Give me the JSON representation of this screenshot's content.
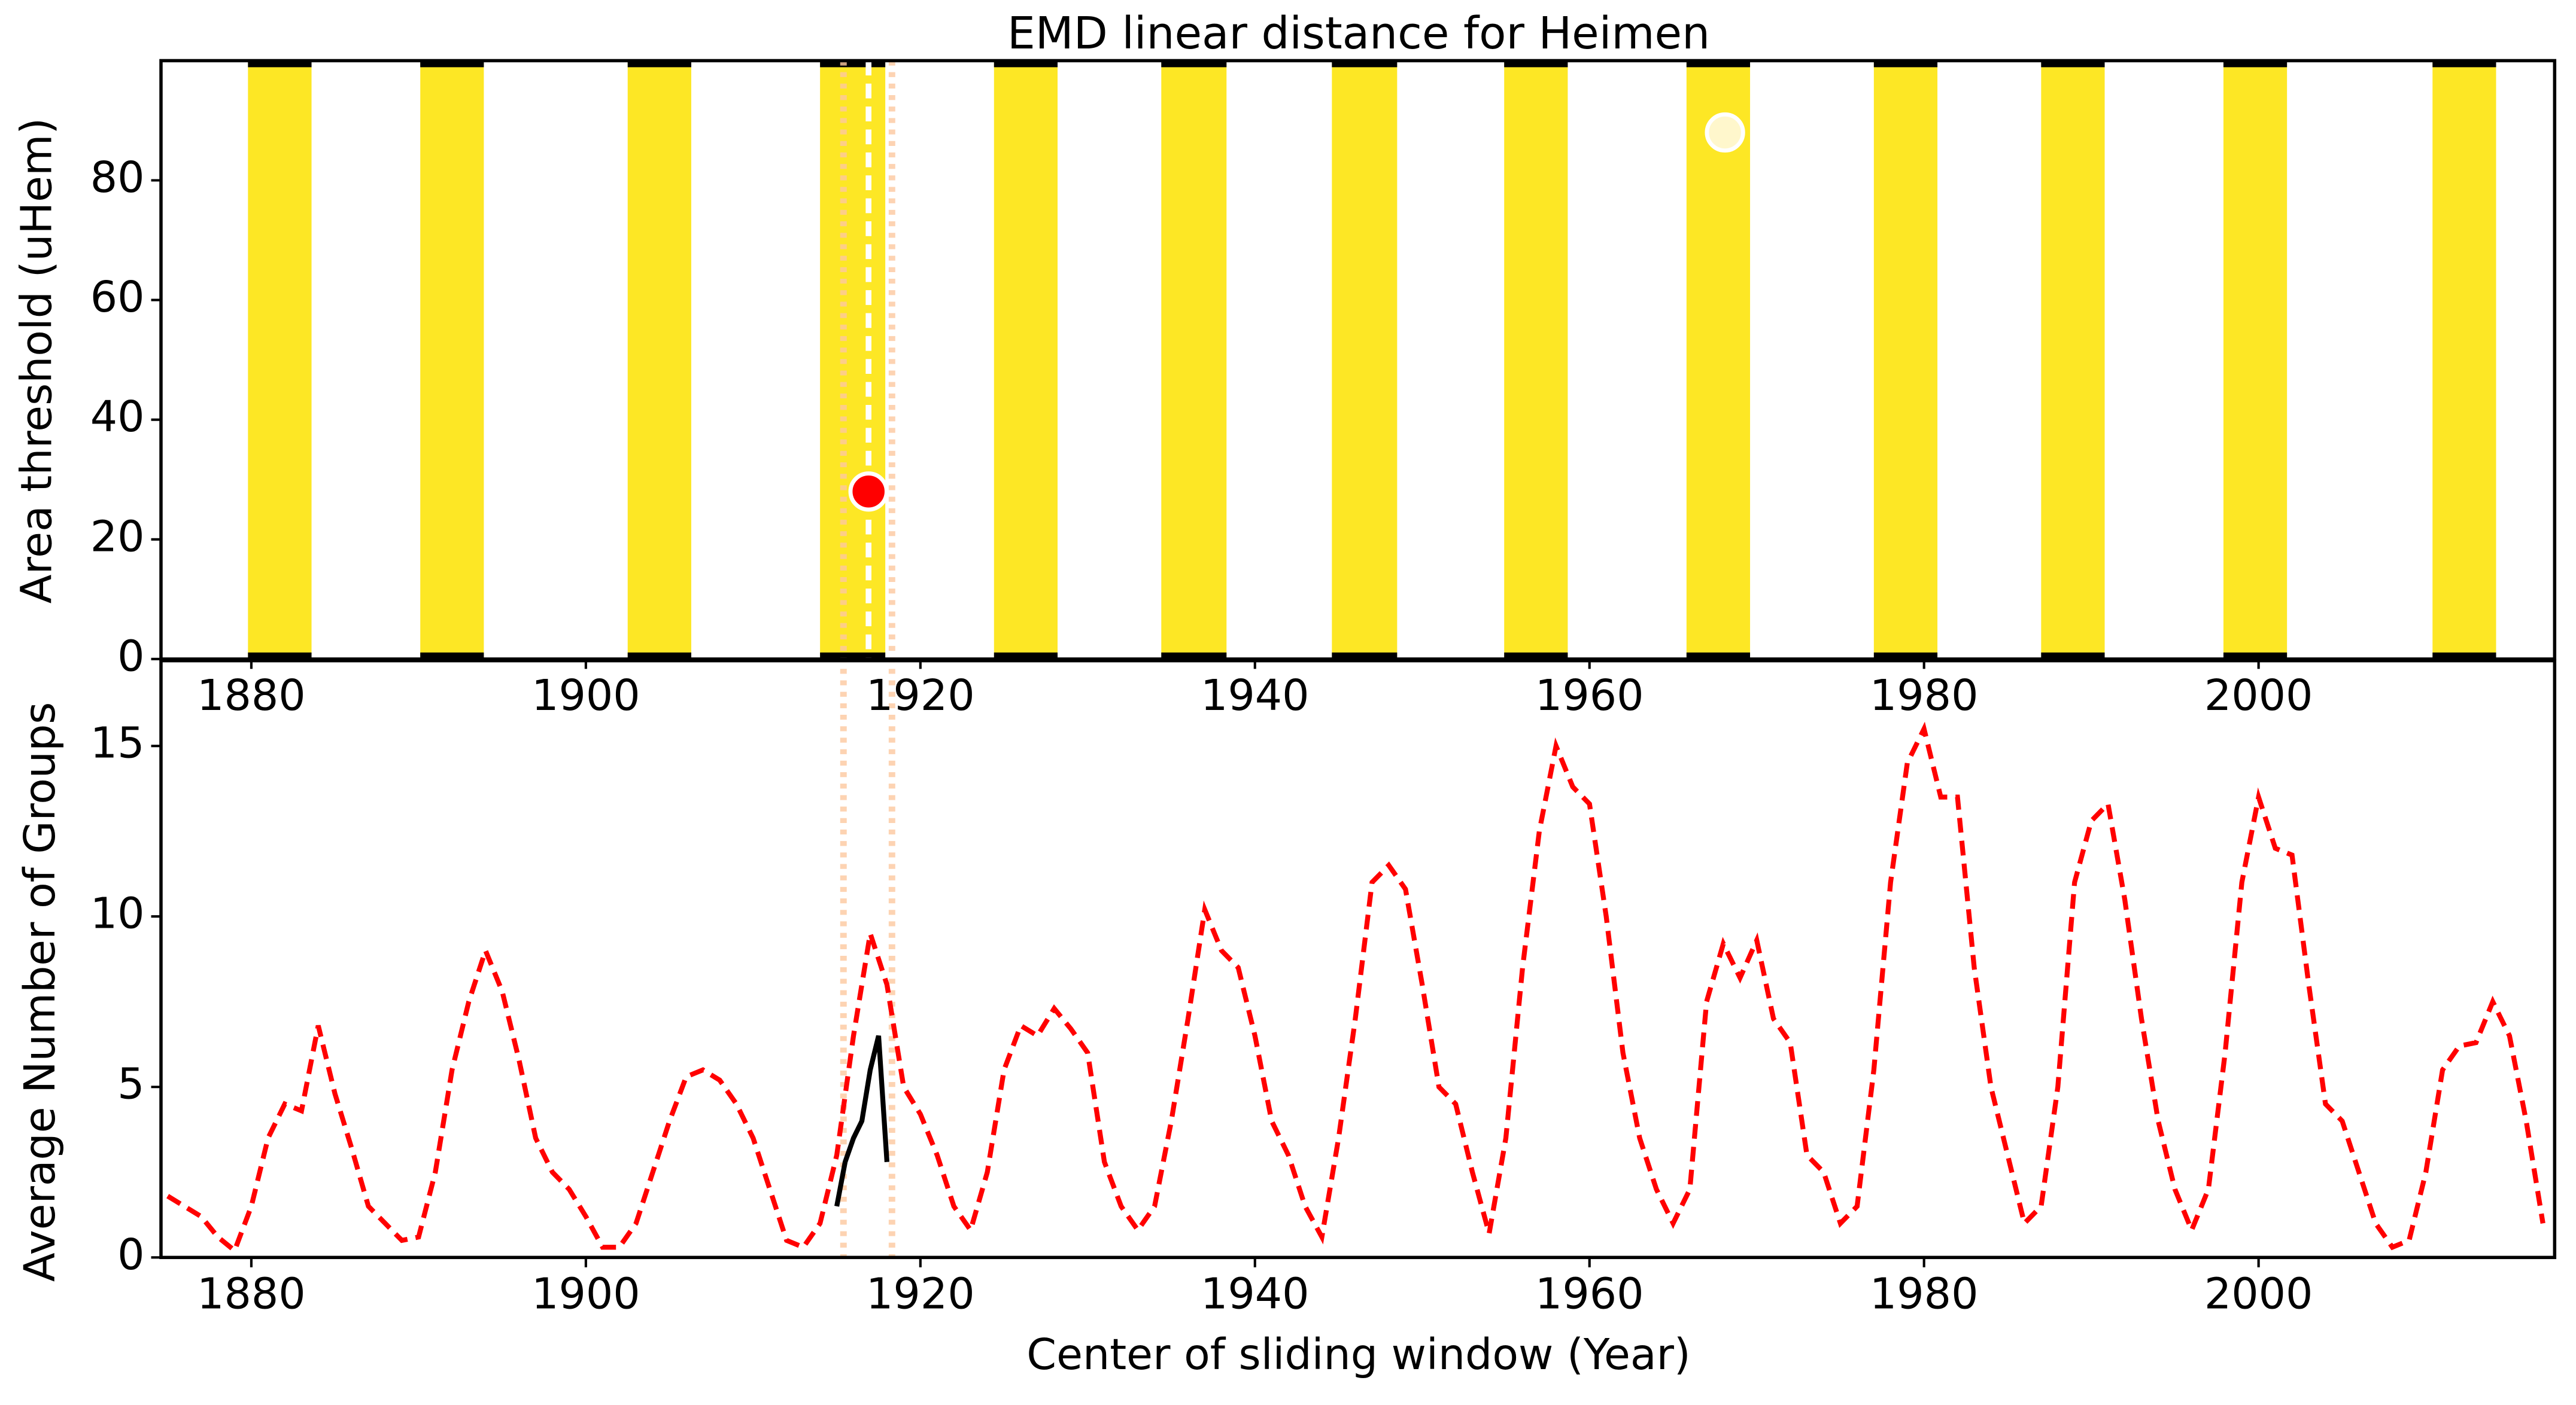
{
  "chart_data": [
    {
      "type": "band",
      "title": "EMD linear distance for Heimen",
      "ylabel": "Area threshold (uHem)",
      "xlim": [
        1874.6,
        2017.7
      ],
      "ylim": [
        0,
        100
      ],
      "xticks": [
        1880,
        1900,
        1920,
        1940,
        1960,
        1980,
        2000
      ],
      "yticks": [
        0,
        20,
        40,
        60,
        80
      ],
      "band_color": "#fde725",
      "band_start": [
        1879.8,
        1890.1,
        1902.5,
        1914.0,
        1924.4,
        1934.4,
        1944.6,
        1954.9,
        1965.8,
        1977.0,
        1987.0,
        1997.9,
        2010.4
      ],
      "band_end": [
        1883.6,
        1893.9,
        1906.3,
        1917.9,
        1928.2,
        1938.3,
        1948.5,
        1958.7,
        1969.6,
        1980.8,
        1990.8,
        2001.7,
        2014.2
      ],
      "markers": [
        {
          "color": "#ff0000",
          "x": 1916.9,
          "y": 28
        },
        {
          "color": "#fff7cc",
          "x": 1968.1,
          "y": 88
        }
      ],
      "vlines": [
        {
          "x": 1916.9,
          "color": "#ffffff",
          "style": "dashed"
        },
        {
          "x": 1915.4,
          "color": "#fdc9a0",
          "style": "dotted"
        },
        {
          "x": 1918.3,
          "color": "#fdc9a0",
          "style": "dotted"
        }
      ]
    },
    {
      "type": "line",
      "xlabel": "Center of sliding window (Year)",
      "ylabel": "Average Number of Groups",
      "xlim": [
        1874.6,
        2017.7
      ],
      "ylim": [
        0,
        17.5
      ],
      "xticks": [
        1880,
        1900,
        1920,
        1940,
        1960,
        1980,
        2000
      ],
      "yticks": [
        0,
        5,
        10,
        15
      ],
      "series": [
        {
          "color": "#ff0000",
          "style": "dashed",
          "x": [
            1875,
            1876,
            1877,
            1878,
            1879,
            1880,
            1881,
            1882,
            1883,
            1884,
            1885,
            1886,
            1887,
            1888,
            1889,
            1890,
            1891,
            1892,
            1893,
            1894,
            1895,
            1896,
            1897,
            1898,
            1899,
            1900,
            1901,
            1902,
            1903,
            1904,
            1905,
            1906,
            1907,
            1908,
            1909,
            1910,
            1911,
            1912,
            1913,
            1914,
            1915,
            1916,
            1917,
            1918,
            1919,
            1920,
            1921,
            1922,
            1923,
            1924,
            1925,
            1926,
            1927,
            1928,
            1929,
            1930,
            1931,
            1932,
            1933,
            1934,
            1935,
            1936,
            1937,
            1938,
            1939,
            1940,
            1941,
            1942,
            1943,
            1944,
            1945,
            1946,
            1947,
            1948,
            1949,
            1950,
            1951,
            1952,
            1953,
            1954,
            1955,
            1956,
            1957,
            1958,
            1959,
            1960,
            1961,
            1962,
            1963,
            1964,
            1965,
            1966,
            1967,
            1968,
            1969,
            1970,
            1971,
            1972,
            1973,
            1974,
            1975,
            1976,
            1977,
            1978,
            1979,
            1980,
            1981,
            1982,
            1983,
            1984,
            1985,
            1986,
            1987,
            1988,
            1989,
            1990,
            1991,
            1992,
            1993,
            1994,
            1995,
            1996,
            1997,
            1998,
            1999,
            2000,
            2001,
            2002,
            2003,
            2004,
            2005,
            2006,
            2007,
            2008,
            2009,
            2010,
            2011,
            2012,
            2013,
            2014,
            2015,
            2016,
            2017
          ],
          "values": [
            1.8,
            1.5,
            1.2,
            0.6,
            0.2,
            1.5,
            3.5,
            4.5,
            4.3,
            6.8,
            4.8,
            3.2,
            1.5,
            1.0,
            0.5,
            0.6,
            2.5,
            5.5,
            7.5,
            9.0,
            7.8,
            5.8,
            3.5,
            2.5,
            2.0,
            1.2,
            0.3,
            0.3,
            1.0,
            2.5,
            4.0,
            5.3,
            5.5,
            5.2,
            4.5,
            3.5,
            2.0,
            0.5,
            0.3,
            1.0,
            3.0,
            6.5,
            9.5,
            8.0,
            5.0,
            4.2,
            3.0,
            1.5,
            0.8,
            2.5,
            5.5,
            6.8,
            6.5,
            7.3,
            6.7,
            6.0,
            2.8,
            1.5,
            0.8,
            1.5,
            4.0,
            7.0,
            10.2,
            9.0,
            8.5,
            6.5,
            4.0,
            3.0,
            1.5,
            0.6,
            3.5,
            7.0,
            11.0,
            11.5,
            10.8,
            8.0,
            5.0,
            4.5,
            2.5,
            0.7,
            3.5,
            8.5,
            12.5,
            15.0,
            13.8,
            13.3,
            10.0,
            6.0,
            3.5,
            2.0,
            1.0,
            2.0,
            7.5,
            9.2,
            8.2,
            9.3,
            7.0,
            6.3,
            3.0,
            2.5,
            1.0,
            1.5,
            5.5,
            11.0,
            14.5,
            15.5,
            13.5,
            13.5,
            8.5,
            5.0,
            3.0,
            1.0,
            1.5,
            5.0,
            11.0,
            12.8,
            13.3,
            10.5,
            7.0,
            4.0,
            2.0,
            0.8,
            2.0,
            6.0,
            11.0,
            13.5,
            12.0,
            11.8,
            8.0,
            4.5,
            4.0,
            2.5,
            1.0,
            0.3,
            0.5,
            2.5,
            5.5,
            6.2,
            6.3,
            7.5,
            6.5,
            4.0,
            1.0
          ]
        },
        {
          "color": "#000000",
          "style": "solid",
          "x": [
            1915,
            1915.5,
            1916,
            1916.5,
            1917,
            1917.5,
            1918
          ],
          "values": [
            1.5,
            2.8,
            3.5,
            4.0,
            5.5,
            6.5,
            2.8
          ]
        }
      ]
    }
  ]
}
